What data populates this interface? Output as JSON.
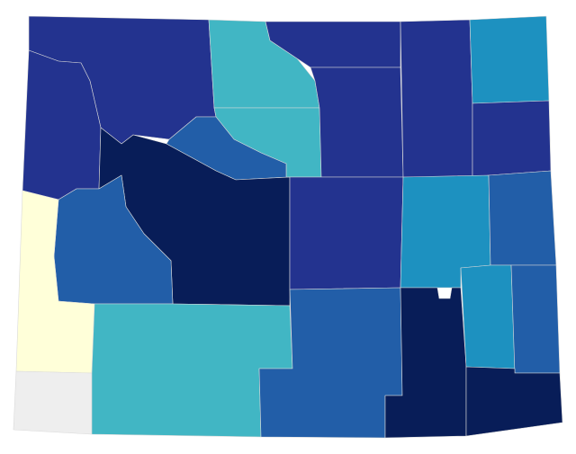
{
  "regions": [
    {
      "color": "#23338f"
    },
    {
      "color": "#41b6c4"
    },
    {
      "color": "#41b6c4"
    },
    {
      "color": "#23338f"
    },
    {
      "color": "#23338f"
    },
    {
      "color": "#23338f"
    },
    {
      "color": "#1d91c0"
    },
    {
      "color": "#23338f"
    },
    {
      "color": "#23338f"
    },
    {
      "color": "#225ea8"
    },
    {
      "color": "#081d58"
    },
    {
      "color": "#225ea8"
    },
    {
      "color": "#ffffd9"
    },
    {
      "color": "#eeeeee"
    },
    {
      "color": "#41b6c4"
    },
    {
      "color": "#23338f"
    },
    {
      "color": "#1d91c0"
    },
    {
      "color": "#225ea8"
    },
    {
      "color": "#225ea8"
    },
    {
      "color": "#081d58"
    },
    {
      "color": "#1d91c0"
    },
    {
      "color": "#225ea8"
    },
    {
      "color": "#081d58"
    }
  ]
}
